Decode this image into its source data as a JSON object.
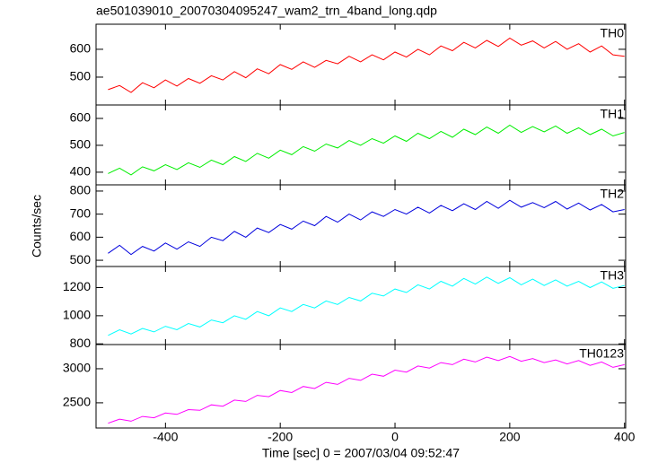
{
  "title": "ae501039010_20070304095247_wam2_trn_4band_long.qdp",
  "xlabel": "Time [sec] 0 = 2007/03/04 09:52:47",
  "ylabel": "Counts/sec",
  "chart_data": [
    {
      "type": "line",
      "xlim": [
        -521,
        402
      ],
      "ylim": [
        400,
        690
      ],
      "yticks": [
        500,
        600
      ],
      "xticks": [
        -400,
        -200,
        0,
        200,
        400
      ],
      "x": [
        -500,
        -480,
        -460,
        -440,
        -420,
        -400,
        -380,
        -360,
        -340,
        -320,
        -300,
        -280,
        -260,
        -240,
        -220,
        -200,
        -180,
        -160,
        -140,
        -120,
        -100,
        -80,
        -60,
        -40,
        -20,
        0,
        20,
        40,
        60,
        80,
        100,
        120,
        140,
        160,
        180,
        200,
        220,
        240,
        260,
        280,
        300,
        320,
        340,
        360,
        380,
        400
      ],
      "series": [
        {
          "name": "TH0",
          "color": "#ff0000",
          "values": [
            455,
            470,
            445,
            480,
            462,
            490,
            468,
            495,
            478,
            505,
            490,
            520,
            498,
            530,
            512,
            545,
            528,
            555,
            535,
            560,
            548,
            575,
            555,
            580,
            562,
            590,
            572,
            600,
            580,
            612,
            595,
            625,
            605,
            632,
            610,
            640,
            615,
            630,
            605,
            628,
            600,
            620,
            590,
            612,
            580,
            575
          ]
        }
      ]
    },
    {
      "type": "line",
      "xlim": [
        -521,
        402
      ],
      "ylim": [
        353,
        650
      ],
      "yticks": [
        400,
        500,
        600
      ],
      "xticks": [
        -400,
        -200,
        0,
        200,
        400
      ],
      "x": [
        -500,
        -480,
        -460,
        -440,
        -420,
        -400,
        -380,
        -360,
        -340,
        -320,
        -300,
        -280,
        -260,
        -240,
        -220,
        -200,
        -180,
        -160,
        -140,
        -120,
        -100,
        -80,
        -60,
        -40,
        -20,
        0,
        20,
        40,
        60,
        80,
        100,
        120,
        140,
        160,
        180,
        200,
        220,
        240,
        260,
        280,
        300,
        320,
        340,
        360,
        380,
        400
      ],
      "series": [
        {
          "name": "TH1",
          "color": "#00ee00",
          "values": [
            395,
            415,
            390,
            420,
            405,
            428,
            410,
            435,
            418,
            445,
            428,
            458,
            440,
            470,
            452,
            482,
            465,
            495,
            478,
            505,
            490,
            518,
            500,
            525,
            508,
            535,
            515,
            545,
            525,
            552,
            530,
            560,
            540,
            568,
            545,
            575,
            548,
            570,
            550,
            572,
            545,
            565,
            540,
            560,
            535,
            548
          ]
        }
      ]
    },
    {
      "type": "line",
      "xlim": [
        -521,
        402
      ],
      "ylim": [
        473,
        827
      ],
      "yticks": [
        500,
        600,
        700,
        800
      ],
      "xticks": [
        -400,
        -200,
        0,
        200,
        400
      ],
      "x": [
        -500,
        -480,
        -460,
        -440,
        -420,
        -400,
        -380,
        -360,
        -340,
        -320,
        -300,
        -280,
        -260,
        -240,
        -220,
        -200,
        -180,
        -160,
        -140,
        -120,
        -100,
        -80,
        -60,
        -40,
        -20,
        0,
        20,
        40,
        60,
        80,
        100,
        120,
        140,
        160,
        180,
        200,
        220,
        240,
        260,
        280,
        300,
        320,
        340,
        360,
        380,
        400
      ],
      "series": [
        {
          "name": "TH2",
          "color": "#0000dd",
          "values": [
            530,
            565,
            525,
            560,
            540,
            575,
            548,
            580,
            560,
            600,
            585,
            625,
            600,
            640,
            620,
            655,
            635,
            670,
            650,
            690,
            665,
            700,
            675,
            710,
            690,
            720,
            700,
            730,
            705,
            738,
            715,
            745,
            720,
            755,
            725,
            760,
            730,
            750,
            728,
            755,
            722,
            748,
            718,
            742,
            710,
            720
          ]
        }
      ]
    },
    {
      "type": "line",
      "xlim": [
        -521,
        402
      ],
      "ylim": [
        795,
        1350
      ],
      "yticks": [
        800,
        1000,
        1200
      ],
      "xticks": [
        -400,
        -200,
        0,
        200,
        400
      ],
      "x": [
        -500,
        -480,
        -460,
        -440,
        -420,
        -400,
        -380,
        -360,
        -340,
        -320,
        -300,
        -280,
        -260,
        -240,
        -220,
        -200,
        -180,
        -160,
        -140,
        -120,
        -100,
        -80,
        -60,
        -40,
        -20,
        0,
        20,
        40,
        60,
        80,
        100,
        120,
        140,
        160,
        180,
        200,
        220,
        240,
        260,
        280,
        300,
        320,
        340,
        360,
        380,
        400
      ],
      "series": [
        {
          "name": "TH3",
          "color": "#00ffff",
          "values": [
            860,
            900,
            870,
            910,
            885,
            925,
            900,
            945,
            920,
            970,
            950,
            1000,
            975,
            1030,
            1000,
            1055,
            1030,
            1080,
            1055,
            1105,
            1080,
            1130,
            1105,
            1160,
            1140,
            1190,
            1165,
            1220,
            1190,
            1245,
            1210,
            1265,
            1225,
            1275,
            1230,
            1270,
            1220,
            1260,
            1215,
            1255,
            1210,
            1245,
            1200,
            1240,
            1195,
            1215
          ]
        }
      ]
    },
    {
      "type": "line",
      "xlim": [
        -521,
        402
      ],
      "ylim": [
        2130,
        3355
      ],
      "yticks": [
        2500,
        3000
      ],
      "xticks": [
        -400,
        -200,
        0,
        200,
        400
      ],
      "x": [
        -500,
        -480,
        -460,
        -440,
        -420,
        -400,
        -380,
        -360,
        -340,
        -320,
        -300,
        -280,
        -260,
        -240,
        -220,
        -200,
        -180,
        -160,
        -140,
        -120,
        -100,
        -80,
        -60,
        -40,
        -20,
        0,
        20,
        40,
        60,
        80,
        100,
        120,
        140,
        160,
        180,
        200,
        220,
        240,
        260,
        280,
        300,
        320,
        340,
        360,
        380,
        400
      ],
      "series": [
        {
          "name": "TH0123",
          "color": "#ff00ff",
          "values": [
            2200,
            2260,
            2230,
            2300,
            2280,
            2350,
            2330,
            2400,
            2390,
            2470,
            2450,
            2540,
            2520,
            2610,
            2590,
            2680,
            2650,
            2740,
            2710,
            2800,
            2770,
            2860,
            2830,
            2920,
            2890,
            2980,
            2950,
            3040,
            3010,
            3090,
            3060,
            3140,
            3100,
            3170,
            3120,
            3180,
            3110,
            3150,
            3090,
            3130,
            3070,
            3120,
            3050,
            3100,
            3020,
            3060
          ]
        }
      ]
    }
  ]
}
